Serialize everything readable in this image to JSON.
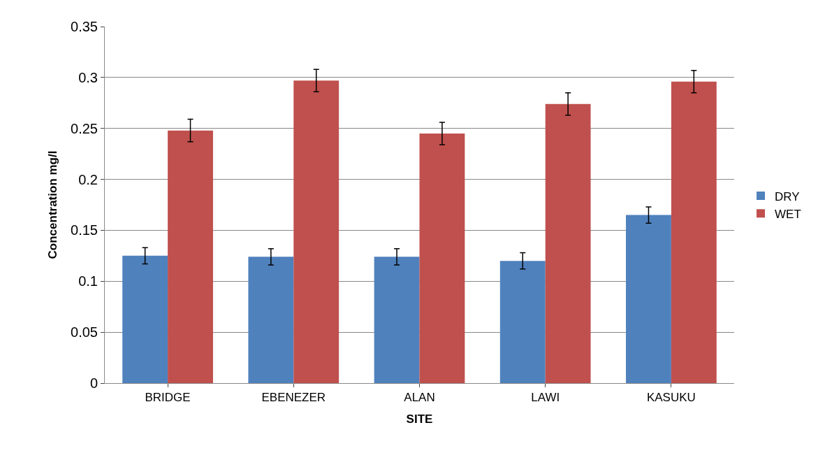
{
  "chart_data": {
    "type": "bar",
    "xlabel": "SITE",
    "ylabel": "Concentration mg/l",
    "categories": [
      "BRIDGE",
      "EBENEZER",
      "ALAN",
      "LAWI",
      "KASUKU"
    ],
    "series": [
      {
        "name": "DRY",
        "color": "#4f81bd",
        "values": [
          0.125,
          0.124,
          0.124,
          0.12,
          0.165
        ],
        "errors": [
          0.008,
          0.008,
          0.008,
          0.008,
          0.008
        ]
      },
      {
        "name": "WET",
        "color": "#c0504d",
        "values": [
          0.248,
          0.297,
          0.245,
          0.274,
          0.296
        ],
        "errors": [
          0.011,
          0.011,
          0.011,
          0.011,
          0.011
        ]
      }
    ],
    "ylim": [
      0,
      0.35
    ],
    "yticks": [
      0,
      {
        "value": 0.05,
        "label": "0.05"
      },
      {
        "value": 0.1,
        "label": "0.1"
      },
      {
        "value": 0.15,
        "label": "0.15"
      },
      {
        "value": 0.2,
        "label": "0.2"
      },
      {
        "value": 0.25,
        "label": "0.25"
      },
      {
        "value": 0.3,
        "label": "0.3"
      },
      {
        "value": 0.35,
        "label": "0.35"
      }
    ],
    "grid": "y",
    "legend": "right"
  }
}
